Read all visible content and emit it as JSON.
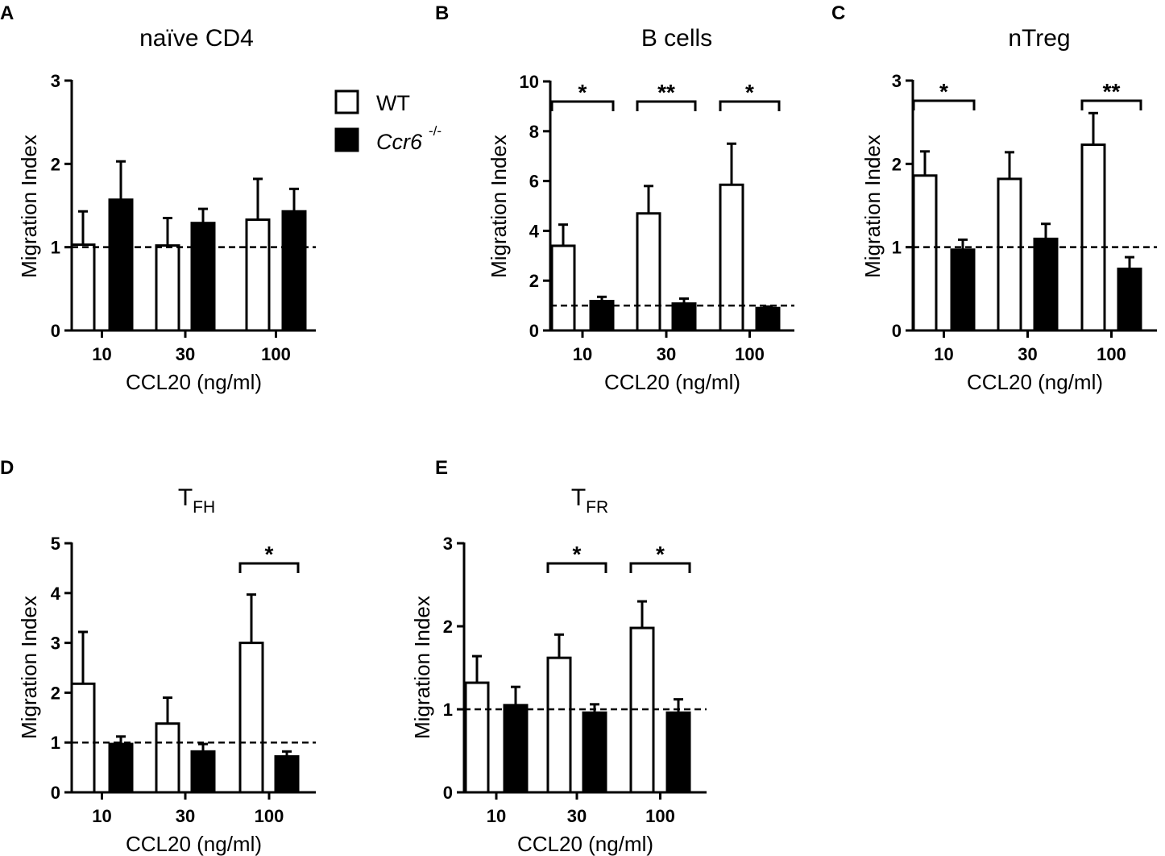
{
  "legend": {
    "wt": {
      "label": "WT",
      "fill": "#ffffff"
    },
    "ko": {
      "label_main": "Ccr6",
      "label_sup": "-/-",
      "fill": "#000000"
    }
  },
  "chart_data": [
    {
      "type": "bar",
      "panel": "A",
      "title": "naïve CD4",
      "title_sub": "",
      "categories": [
        "10",
        "30",
        "100"
      ],
      "xlabel": "CCL20 (ng/ml)",
      "ylabel": "Migration Index",
      "ylim": [
        0,
        3
      ],
      "yticks": [
        0,
        1,
        2,
        3
      ],
      "reference_line": 1,
      "series": [
        {
          "name": "WT",
          "values": [
            1.03,
            1.02,
            1.33
          ],
          "errors": [
            0.4,
            0.33,
            0.49
          ]
        },
        {
          "name": "Ccr6-/-",
          "values": [
            1.57,
            1.29,
            1.43
          ],
          "errors": [
            0.46,
            0.17,
            0.27
          ]
        }
      ],
      "significance": []
    },
    {
      "type": "bar",
      "panel": "B",
      "title": "B cells",
      "title_sub": "",
      "categories": [
        "10",
        "30",
        "100"
      ],
      "xlabel": "CCL20 (ng/ml)",
      "ylabel": "Migration Index",
      "ylim": [
        0,
        10
      ],
      "yticks": [
        0,
        2,
        4,
        6,
        8,
        10
      ],
      "reference_line": 1,
      "series": [
        {
          "name": "WT",
          "values": [
            3.4,
            4.7,
            5.85
          ],
          "errors": [
            0.85,
            1.1,
            1.65
          ]
        },
        {
          "name": "Ccr6-/-",
          "values": [
            1.18,
            1.08,
            0.9
          ],
          "errors": [
            0.17,
            0.2,
            0.06
          ]
        }
      ],
      "significance": [
        {
          "category_index": 0,
          "label": "*"
        },
        {
          "category_index": 1,
          "label": "**"
        },
        {
          "category_index": 2,
          "label": "*"
        }
      ]
    },
    {
      "type": "bar",
      "panel": "C",
      "title": "nTreg",
      "title_sub": "",
      "categories": [
        "10",
        "30",
        "100"
      ],
      "xlabel": "CCL20 (ng/ml)",
      "ylabel": "Migration Index",
      "ylim": [
        0,
        3
      ],
      "yticks": [
        0,
        1,
        2,
        3
      ],
      "reference_line": 1,
      "series": [
        {
          "name": "WT",
          "values": [
            1.86,
            1.82,
            2.23
          ],
          "errors": [
            0.29,
            0.32,
            0.38
          ]
        },
        {
          "name": "Ccr6-/-",
          "values": [
            0.97,
            1.1,
            0.74
          ],
          "errors": [
            0.12,
            0.18,
            0.14
          ]
        }
      ],
      "significance": [
        {
          "category_index": 0,
          "label": "*"
        },
        {
          "category_index": 2,
          "label": "**"
        }
      ]
    },
    {
      "type": "bar",
      "panel": "D",
      "title": "T",
      "title_sub": "FH",
      "categories": [
        "10",
        "30",
        "100"
      ],
      "xlabel": "CCL20 (ng/ml)",
      "ylabel": "Migration Index",
      "ylim": [
        0,
        5
      ],
      "yticks": [
        0,
        1,
        2,
        3,
        4,
        5
      ],
      "reference_line": 1,
      "series": [
        {
          "name": "WT",
          "values": [
            2.18,
            1.38,
            3.0
          ],
          "errors": [
            1.04,
            0.52,
            0.97
          ]
        },
        {
          "name": "Ccr6-/-",
          "values": [
            0.97,
            0.82,
            0.72
          ],
          "errors": [
            0.15,
            0.15,
            0.1
          ]
        }
      ],
      "significance": [
        {
          "category_index": 2,
          "label": "*"
        }
      ]
    },
    {
      "type": "bar",
      "panel": "E",
      "title": "T",
      "title_sub": "FR",
      "categories": [
        "10",
        "30",
        "100"
      ],
      "xlabel": "CCL20 (ng/ml)",
      "ylabel": "Migration Index",
      "ylim": [
        0,
        3
      ],
      "yticks": [
        0,
        1,
        2,
        3
      ],
      "reference_line": 1,
      "series": [
        {
          "name": "WT",
          "values": [
            1.32,
            1.62,
            1.98
          ],
          "errors": [
            0.32,
            0.28,
            0.32
          ]
        },
        {
          "name": "Ccr6-/-",
          "values": [
            1.05,
            0.96,
            0.96
          ],
          "errors": [
            0.22,
            0.1,
            0.16
          ]
        }
      ],
      "significance": [
        {
          "category_index": 1,
          "label": "*"
        },
        {
          "category_index": 2,
          "label": "*"
        }
      ]
    }
  ]
}
